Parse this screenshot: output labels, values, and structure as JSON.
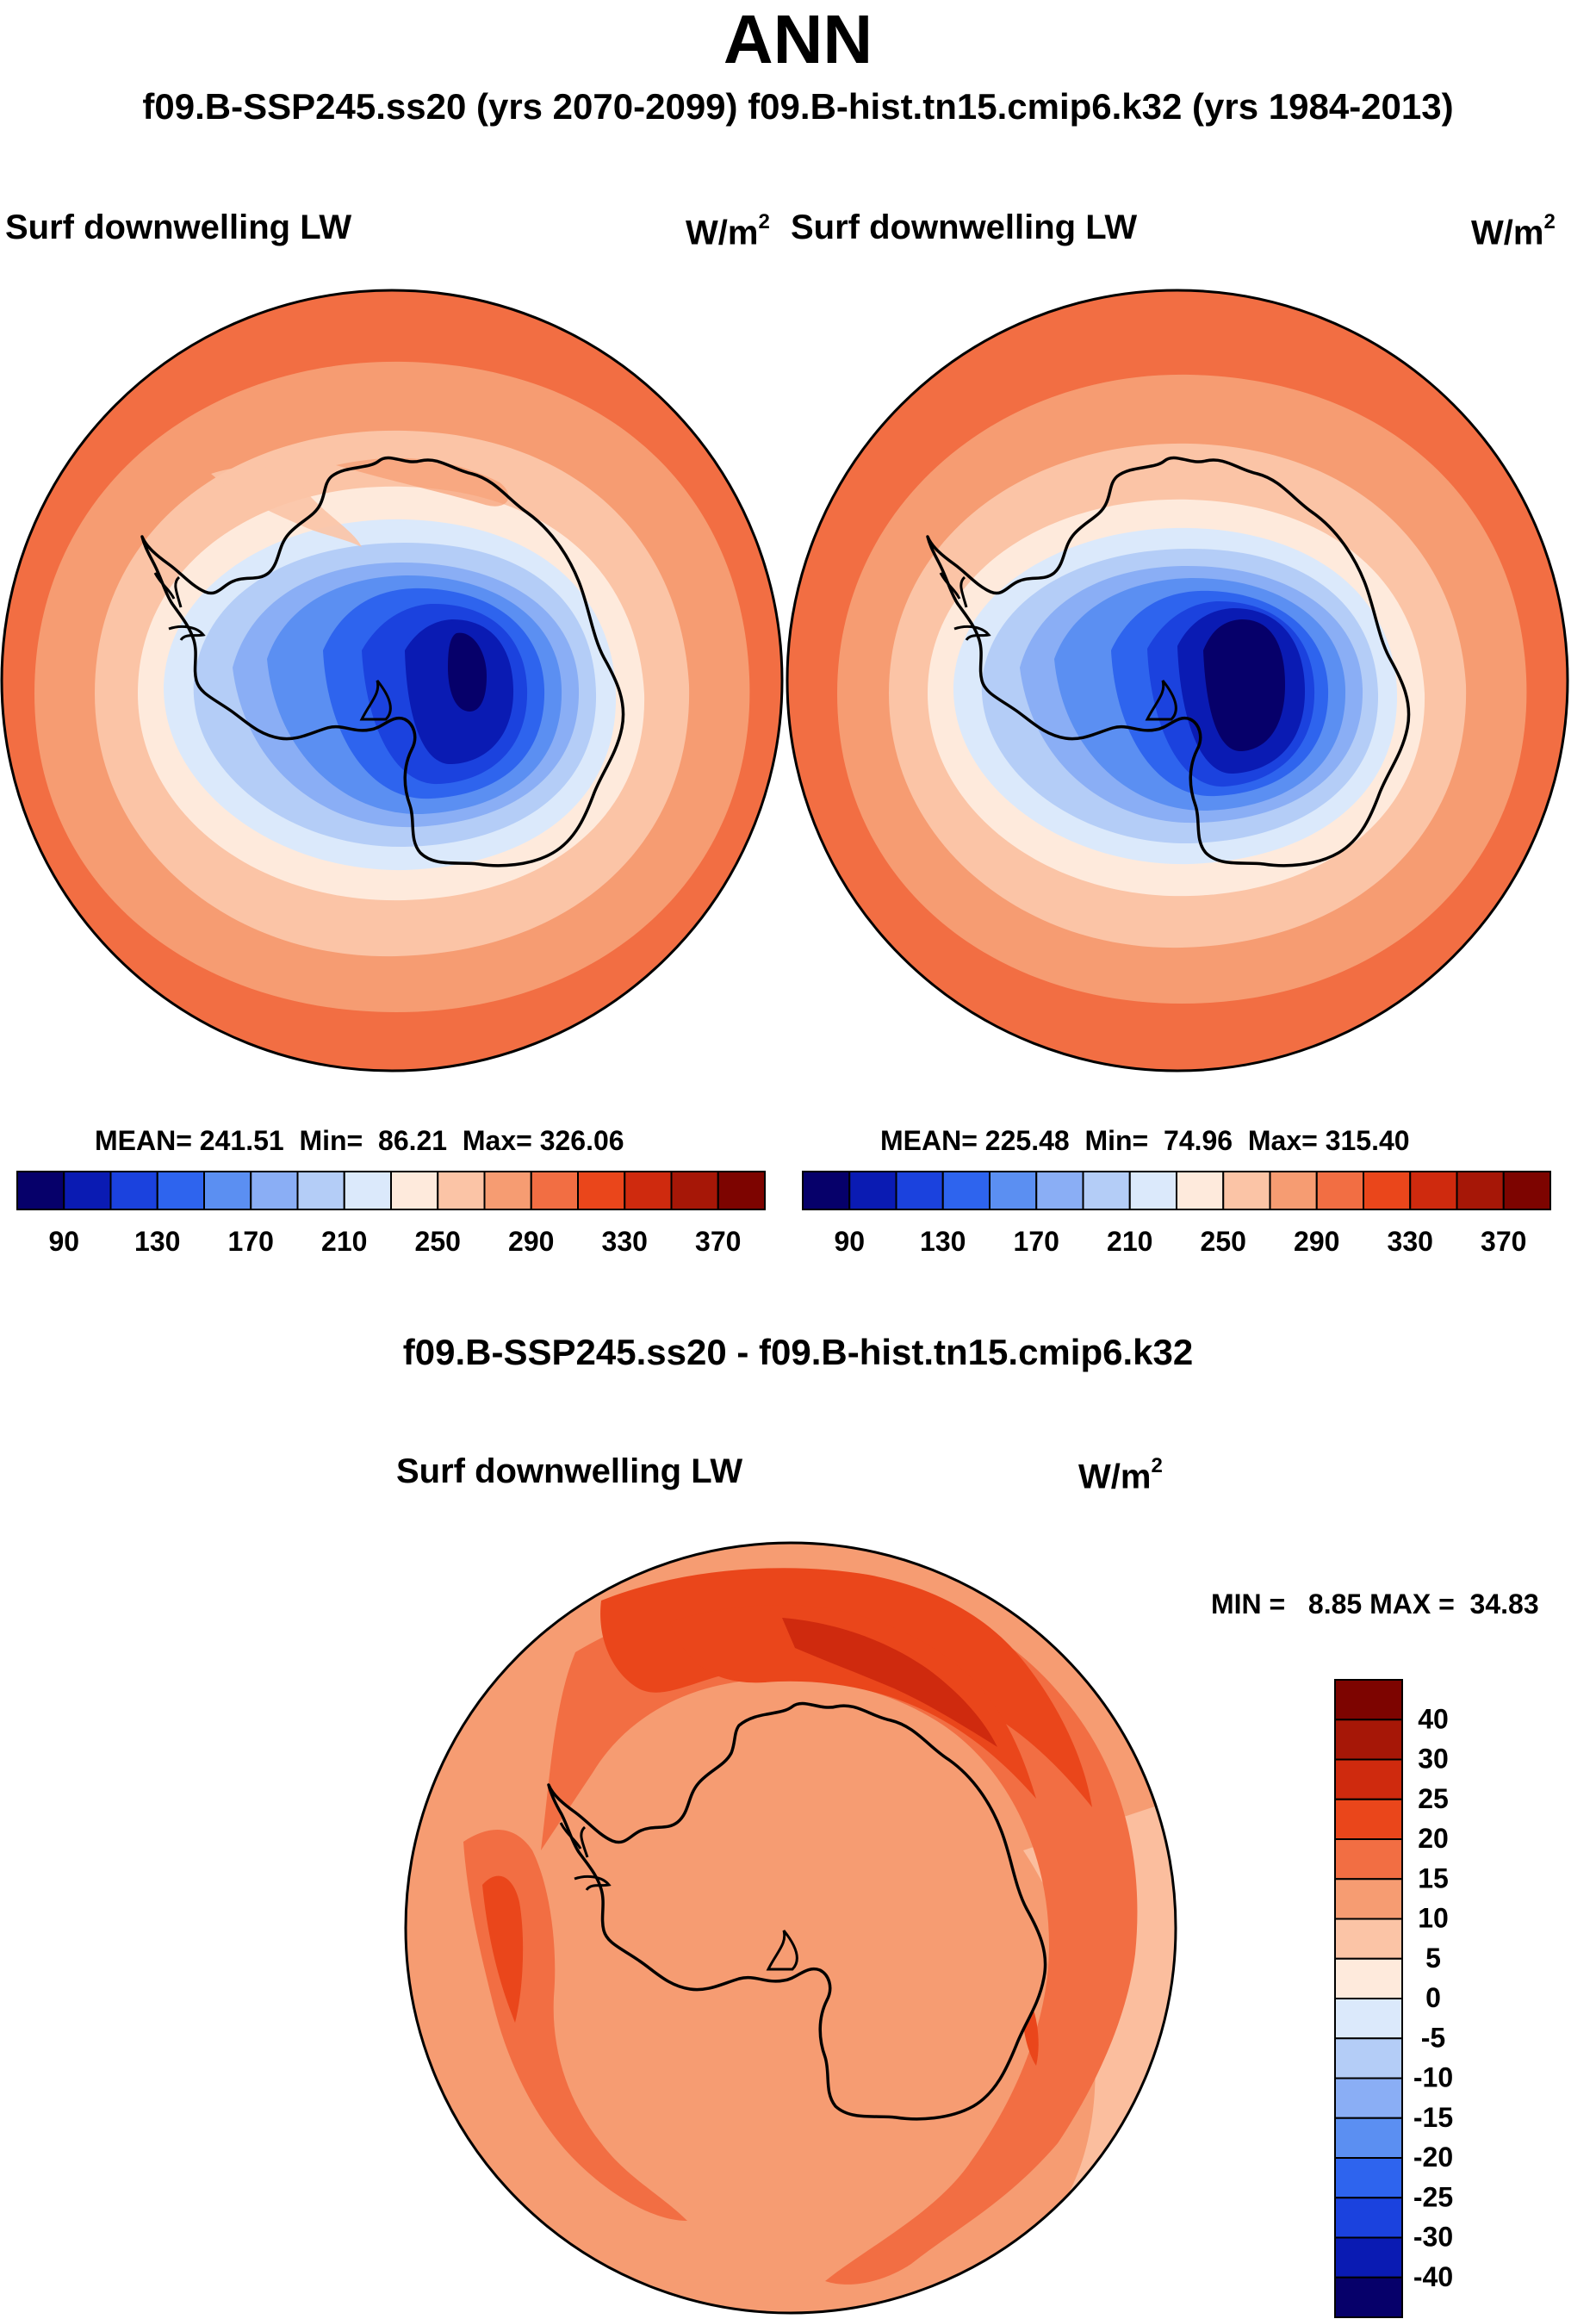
{
  "header": {
    "title": "ANN",
    "subtitle": "f09.B-SSP245.ss20 (yrs 2070-2099)  f09.B-hist.tn15.cmip6.k32 (yrs 1984-2013)"
  },
  "abs_levels": [
    90,
    110,
    130,
    150,
    170,
    190,
    210,
    230,
    250,
    270,
    290,
    310,
    330,
    350,
    370
  ],
  "abs_labels": [
    "90",
    "130",
    "170",
    "210",
    "250",
    "290",
    "330",
    "370"
  ],
  "abs_colors": [
    "#06006a",
    "#0a1bb3",
    "#1b42de",
    "#2e64ee",
    "#5b8ff2",
    "#8aaef5",
    "#b4cdf7",
    "#dbe9fb",
    "#feeadc",
    "#fbc4a6",
    "#f69c72",
    "#f26e43",
    "#ea461b",
    "#cf2a0e",
    "#a61707",
    "#7d0400"
  ],
  "panels": [
    {
      "id": "left",
      "title": "Surf downwelling LW",
      "units_base": "W/m",
      "units_exp": "2",
      "mean_label": "MEAN=",
      "mean": "241.51",
      "min_label": "Min=",
      "min": "86.21",
      "max_label": "Max=",
      "max": "326.06",
      "colorbar_labels": [
        "90",
        "130",
        "170",
        "210",
        "250",
        "290",
        "330",
        "370"
      ]
    },
    {
      "id": "right",
      "title": "Surf downwelling LW",
      "units_base": "W/m",
      "units_exp": "2",
      "mean_label": "MEAN=",
      "mean": "225.48",
      "min_label": "Min=",
      "min": "74.96",
      "max_label": "Max=",
      "max": "315.40",
      "colorbar_labels": [
        "90",
        "130",
        "170",
        "210",
        "250",
        "290",
        "330",
        "370"
      ]
    }
  ],
  "diff": {
    "header": "f09.B-SSP245.ss20 - f09.B-hist.tn15.cmip6.k32",
    "title": "Surf downwelling LW",
    "units_base": "W/m",
    "units_exp": "2",
    "min_label": "MIN =",
    "min": "8.85",
    "max_label": "MAX =",
    "max": "34.83",
    "levels": [
      -40,
      -30,
      -25,
      -20,
      -15,
      -10,
      -5,
      0,
      5,
      10,
      15,
      20,
      25,
      30,
      40
    ],
    "colorbar_labels": [
      "40",
      "30",
      "25",
      "20",
      "15",
      "10",
      "5",
      "0",
      "-5",
      "-10",
      "-15",
      "-20",
      "-25",
      "-30",
      "-40"
    ],
    "colors": [
      "#06006a",
      "#0a1bb3",
      "#1b42de",
      "#2e64ee",
      "#5b8ff2",
      "#8aaef5",
      "#b4cdf7",
      "#dbe9fb",
      "#feeadc",
      "#fbc4a6",
      "#f69c72",
      "#f26e43",
      "#ea461b",
      "#cf2a0e",
      "#a61707",
      "#7d0400"
    ]
  },
  "chart_data": [
    {
      "type": "heatmap",
      "projection": "south-polar-stereographic",
      "title": "Surf downwelling LW",
      "units": "W/m2",
      "period": "yrs 2070-2099",
      "case": "f09.B-SSP245.ss20",
      "mean": 241.51,
      "min": 86.21,
      "max": 326.06,
      "contour_levels": [
        90,
        110,
        130,
        150,
        170,
        190,
        210,
        230,
        250,
        270,
        290,
        310,
        330,
        350,
        370
      ]
    },
    {
      "type": "heatmap",
      "projection": "south-polar-stereographic",
      "title": "Surf downwelling LW",
      "units": "W/m2",
      "period": "yrs 1984-2013",
      "case": "f09.B-hist.tn15.cmip6.k32",
      "mean": 225.48,
      "min": 74.96,
      "max": 315.4,
      "contour_levels": [
        90,
        110,
        130,
        150,
        170,
        190,
        210,
        230,
        250,
        270,
        290,
        310,
        330,
        350,
        370
      ]
    },
    {
      "type": "heatmap",
      "projection": "south-polar-stereographic",
      "title": "Surf downwelling LW",
      "units": "W/m2",
      "case": "f09.B-SSP245.ss20 - f09.B-hist.tn15.cmip6.k32",
      "min": 8.85,
      "max": 34.83,
      "contour_levels": [
        -40,
        -30,
        -25,
        -20,
        -15,
        -10,
        -5,
        0,
        5,
        10,
        15,
        20,
        25,
        30,
        40
      ]
    }
  ]
}
